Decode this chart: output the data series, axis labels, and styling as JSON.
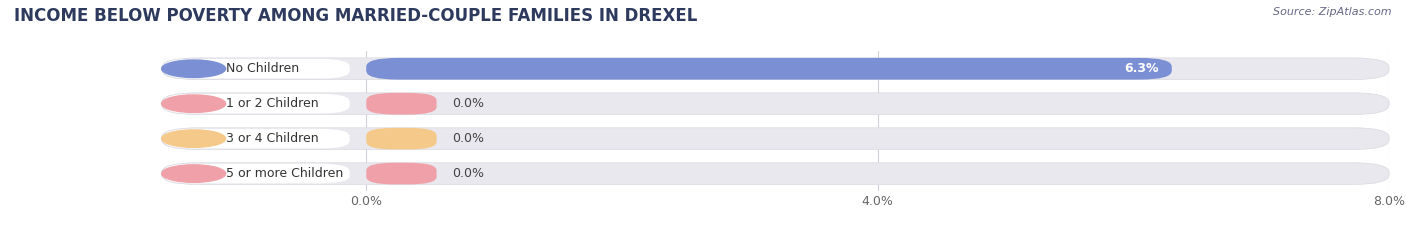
{
  "title": "INCOME BELOW POVERTY AMONG MARRIED-COUPLE FAMILIES IN DREXEL",
  "source": "Source: ZipAtlas.com",
  "categories": [
    "No Children",
    "1 or 2 Children",
    "3 or 4 Children",
    "5 or more Children"
  ],
  "values": [
    6.3,
    0.0,
    0.0,
    0.0
  ],
  "bar_colors": [
    "#7b8fd4",
    "#f0a0a8",
    "#f5c98a",
    "#f0a0a8"
  ],
  "value_labels": [
    "6.3%",
    "0.0%",
    "0.0%",
    "0.0%"
  ],
  "xlim": [
    0,
    8.0
  ],
  "xticks": [
    0.0,
    4.0,
    8.0
  ],
  "xtick_labels": [
    "0.0%",
    "4.0%",
    "8.0%"
  ],
  "background_color": "#ffffff",
  "bar_bg_color": "#e8e8ee",
  "title_fontsize": 12,
  "axis_fontsize": 9,
  "label_fontsize": 9
}
